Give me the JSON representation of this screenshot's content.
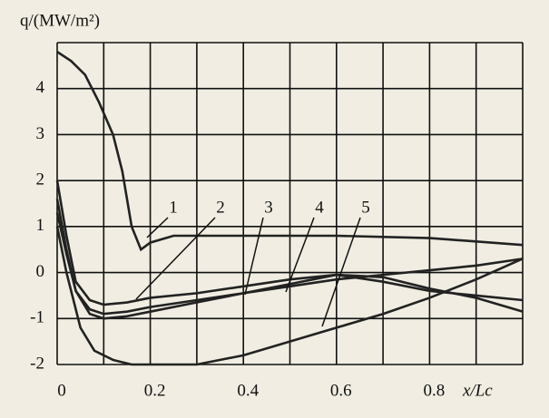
{
  "chart_data": {
    "type": "line",
    "title": "q/(MW/m²)",
    "x_label": "x/Lc",
    "xlim": [
      0,
      1.0
    ],
    "ylim": [
      -2,
      5
    ],
    "xticks": [
      0,
      0.2,
      0.4,
      0.6,
      0.8
    ],
    "xgrid": [
      0,
      0.1,
      0.2,
      0.3,
      0.4,
      0.5,
      0.6,
      0.7,
      0.8,
      0.9,
      1.0
    ],
    "yticks": [
      -2,
      -1,
      0,
      1,
      2,
      3,
      4
    ],
    "ygrid": [
      -2,
      -1,
      0,
      1,
      2,
      3,
      4,
      5
    ],
    "grid": true,
    "series": [
      {
        "name": "1",
        "color": "#222222",
        "x": [
          0,
          0.03,
          0.06,
          0.09,
          0.12,
          0.14,
          0.16,
          0.18,
          0.2,
          0.25,
          0.3,
          0.4,
          0.6,
          0.8,
          1.0
        ],
        "values": [
          4.8,
          4.6,
          4.3,
          3.7,
          3.0,
          2.2,
          1.0,
          0.5,
          0.65,
          0.8,
          0.8,
          0.8,
          0.8,
          0.75,
          0.6
        ]
      },
      {
        "name": "2",
        "color": "#222222",
        "x": [
          0,
          0.02,
          0.04,
          0.07,
          0.1,
          0.15,
          0.2,
          0.3,
          0.4,
          0.5,
          0.6,
          0.7,
          0.8,
          0.9,
          1.0
        ],
        "values": [
          1.3,
          0.4,
          -0.4,
          -0.8,
          -0.9,
          -0.85,
          -0.75,
          -0.6,
          -0.45,
          -0.3,
          -0.15,
          -0.05,
          0.05,
          0.15,
          0.3
        ]
      },
      {
        "name": "3",
        "color": "#222222",
        "x": [
          0,
          0.02,
          0.04,
          0.07,
          0.1,
          0.15,
          0.2,
          0.3,
          0.4,
          0.5,
          0.6,
          0.7,
          0.8,
          0.9,
          1.0
        ],
        "values": [
          1.6,
          0.5,
          -0.4,
          -0.9,
          -1.0,
          -0.95,
          -0.85,
          -0.65,
          -0.45,
          -0.25,
          -0.05,
          -0.1,
          -0.35,
          -0.55,
          -0.85
        ]
      },
      {
        "name": "4",
        "color": "#222222",
        "x": [
          0,
          0.02,
          0.04,
          0.07,
          0.1,
          0.15,
          0.2,
          0.3,
          0.4,
          0.5,
          0.6,
          0.7,
          0.8,
          0.9,
          1.0
        ],
        "values": [
          2.0,
          0.8,
          -0.2,
          -0.6,
          -0.7,
          -0.65,
          -0.55,
          -0.45,
          -0.3,
          -0.15,
          -0.05,
          -0.2,
          -0.4,
          -0.5,
          -0.6
        ]
      },
      {
        "name": "5",
        "color": "#222222",
        "x": [
          0,
          0.02,
          0.05,
          0.08,
          0.12,
          0.16,
          0.2,
          0.3,
          0.4,
          0.5,
          0.6,
          0.7,
          0.8,
          0.9,
          1.0
        ],
        "values": [
          1.0,
          0.0,
          -1.2,
          -1.7,
          -1.9,
          -2.0,
          -2.0,
          -2.0,
          -1.8,
          -1.5,
          -1.2,
          -0.9,
          -0.55,
          -0.15,
          0.3
        ]
      }
    ]
  }
}
